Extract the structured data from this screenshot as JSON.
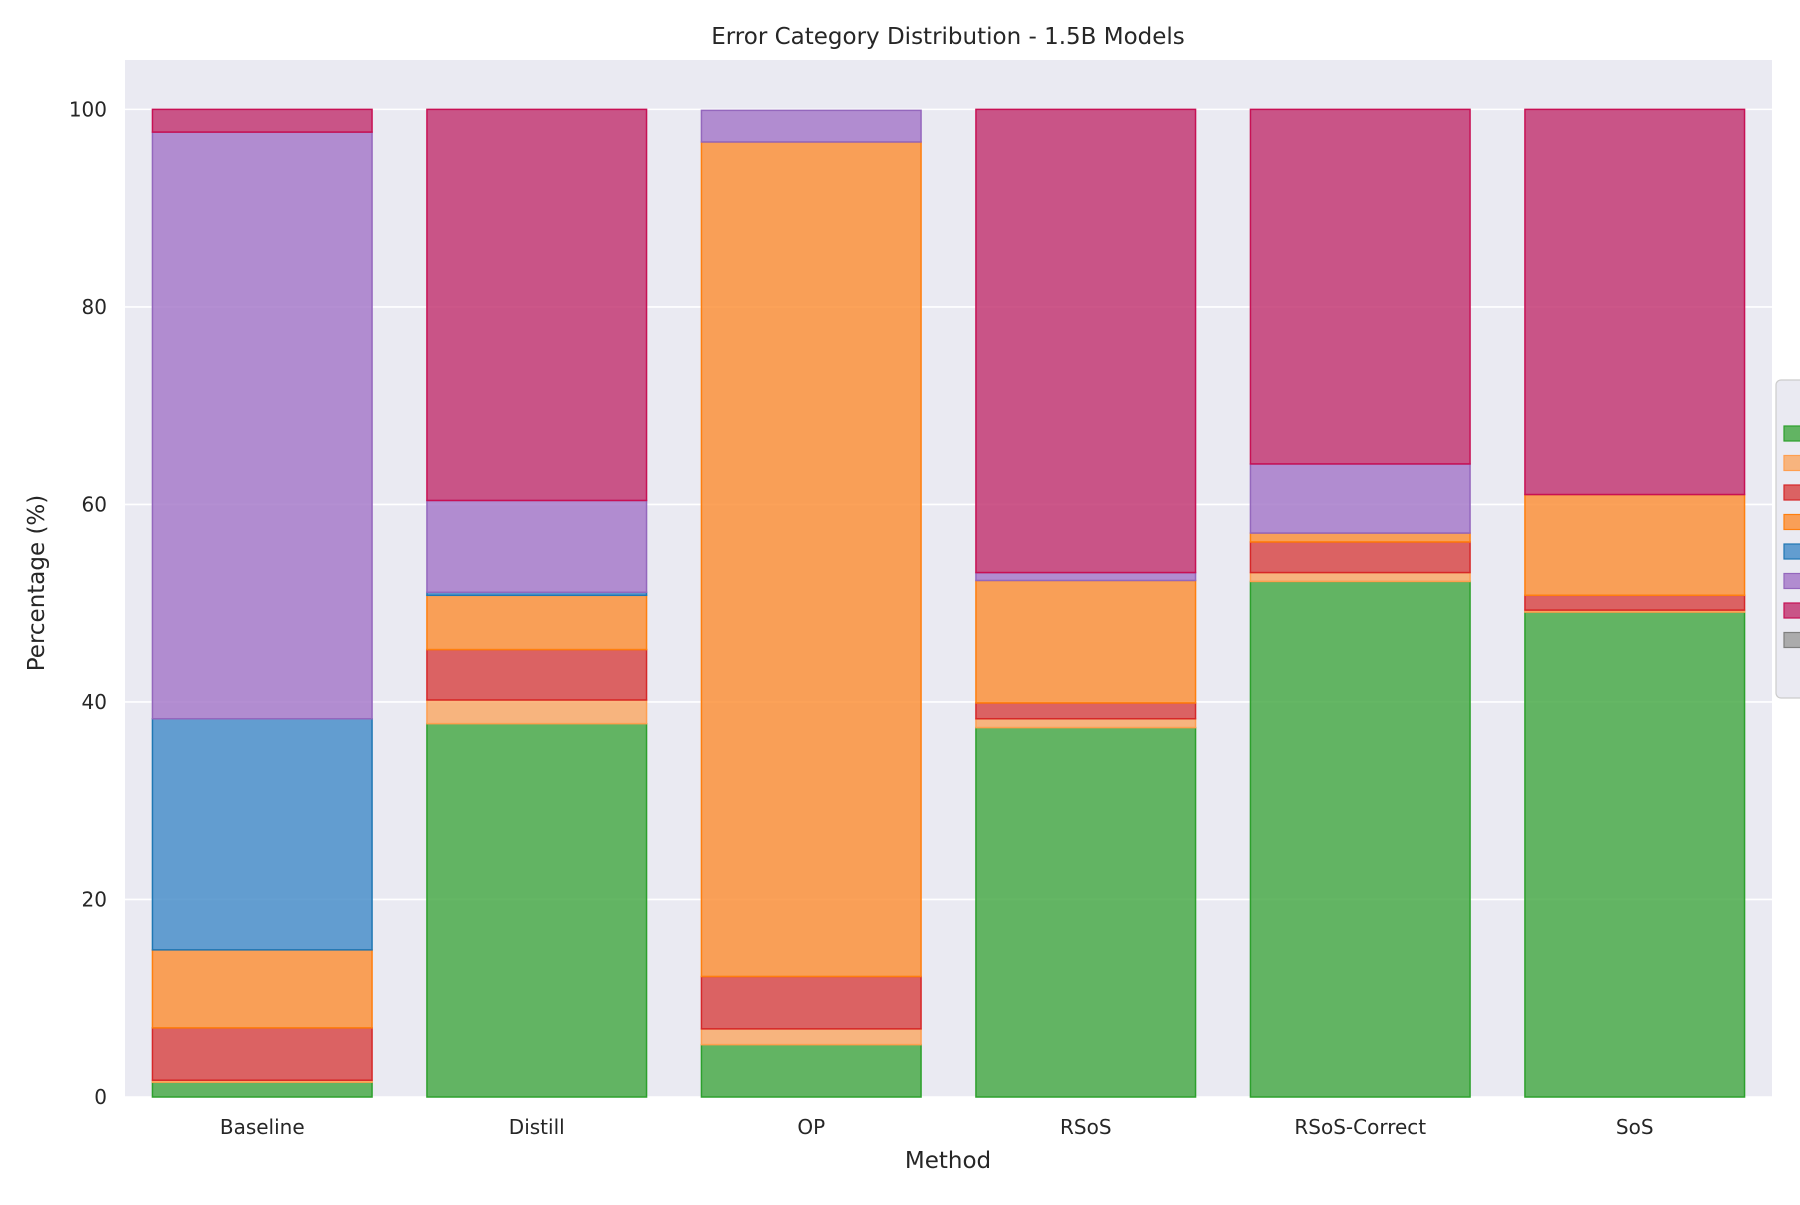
{
  "chart_data": {
    "type": "bar",
    "stacked": true,
    "title": "Error Category Distribution - 1.5B Models",
    "xlabel": "Method",
    "ylabel": "Percentage (%)",
    "ylim": [
      0,
      105
    ],
    "yticks": [
      0,
      20,
      40,
      60,
      80,
      100
    ],
    "grid": true,
    "legend_position": "right",
    "categories": [
      "Baseline",
      "Distill",
      "OP",
      "RSoS",
      "RSoS-Correct",
      "SoS"
    ],
    "series": [
      {
        "fill": "#4aaa4a",
        "edge": "#2ca02c",
        "values": [
          1.5,
          37.8,
          5.3,
          37.4,
          52.2,
          49.1
        ]
      },
      {
        "fill": "#f9aa6a",
        "edge": "#ff9f50",
        "values": [
          0.2,
          2.4,
          1.6,
          0.9,
          0.9,
          0.2
        ]
      },
      {
        "fill": "#d84a4a",
        "edge": "#d62728",
        "values": [
          5.3,
          5.1,
          5.3,
          1.6,
          3.1,
          1.5
        ]
      },
      {
        "fill": "#fb923c",
        "edge": "#ff7f0e",
        "values": [
          7.9,
          5.5,
          84.5,
          12.4,
          0.9,
          10.2
        ]
      },
      {
        "fill": "#4a8fca",
        "edge": "#1f77b4",
        "values": [
          23.4,
          0.3,
          0.0,
          0.0,
          0.0,
          0.0
        ]
      },
      {
        "fill": "#a77bca",
        "edge": "#9467bd",
        "values": [
          59.4,
          9.3,
          3.2,
          0.8,
          7.0,
          0.0
        ]
      },
      {
        "fill": "#c33a74",
        "edge": "#c71054",
        "values": [
          2.3,
          39.6,
          0.0,
          46.9,
          35.9,
          39.0
        ]
      },
      {
        "fill": "#a0a0a0",
        "edge": "#7f7f7f",
        "values": [
          0.0,
          0.0,
          0.0,
          0.0,
          0.0,
          0.0
        ]
      }
    ]
  }
}
